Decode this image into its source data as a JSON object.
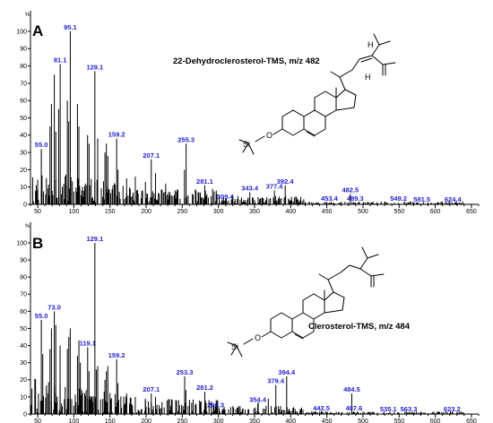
{
  "chart_data": [
    {
      "type": "bar",
      "panel": "A",
      "title": "22-Dehydroclerosterol-TMS, m/z 482",
      "ylabel": "%",
      "xlim": [
        40,
        660
      ],
      "ylim": [
        0,
        100
      ],
      "xticks": [
        50,
        100,
        150,
        200,
        250,
        300,
        350,
        400,
        450,
        500,
        550,
        600,
        650
      ],
      "yticks": [
        0,
        10,
        20,
        30,
        40,
        50,
        60,
        70,
        80,
        90,
        100
      ],
      "annotated_peaks": [
        {
          "label": "55.0",
          "x": 55.0,
          "y": 32
        },
        {
          "label": "81.1",
          "x": 81.1,
          "y": 81
        },
        {
          "label": "95.1",
          "x": 95.1,
          "y": 100
        },
        {
          "label": "129.1",
          "x": 129.1,
          "y": 77
        },
        {
          "label": "159.2",
          "x": 159.2,
          "y": 38
        },
        {
          "label": "207.1",
          "x": 207.1,
          "y": 26
        },
        {
          "label": "255.3",
          "x": 255.3,
          "y": 35
        },
        {
          "label": "281.1",
          "x": 281.1,
          "y": 11
        },
        {
          "label": "309.4",
          "x": 309.4,
          "y": 2
        },
        {
          "label": "343.4",
          "x": 343.4,
          "y": 7
        },
        {
          "label": "377.4",
          "x": 377.4,
          "y": 8
        },
        {
          "label": "392.4",
          "x": 392.4,
          "y": 11
        },
        {
          "label": "453.4",
          "x": 453.4,
          "y": 1
        },
        {
          "label": "482.5",
          "x": 482.5,
          "y": 6
        },
        {
          "label": "489.3",
          "x": 489.3,
          "y": 1
        },
        {
          "label": "549.2",
          "x": 549.2,
          "y": 1
        },
        {
          "label": "581.5",
          "x": 581.5,
          "y": 0.5
        },
        {
          "label": "624.4",
          "x": 624.4,
          "y": 0.5
        }
      ]
    },
    {
      "type": "bar",
      "panel": "B",
      "title": "Clerosterol-TMS, m/z 484",
      "ylabel": "%",
      "xlim": [
        40,
        660
      ],
      "ylim": [
        0,
        100
      ],
      "xticks": [
        50,
        100,
        150,
        200,
        250,
        300,
        350,
        400,
        450,
        500,
        550,
        600,
        650
      ],
      "yticks": [
        0,
        10,
        20,
        30,
        40,
        50,
        60,
        70,
        80,
        90,
        100
      ],
      "annotated_peaks": [
        {
          "label": "55.0",
          "x": 55.0,
          "y": 55
        },
        {
          "label": "73.0",
          "x": 73.0,
          "y": 60
        },
        {
          "label": "119.1",
          "x": 119.1,
          "y": 39
        },
        {
          "label": "129.1",
          "x": 129.1,
          "y": 100
        },
        {
          "label": "159.2",
          "x": 159.2,
          "y": 32
        },
        {
          "label": "207.1",
          "x": 207.1,
          "y": 12
        },
        {
          "label": "253.3",
          "x": 253.3,
          "y": 22
        },
        {
          "label": "281.2",
          "x": 281.2,
          "y": 13
        },
        {
          "label": "296.3",
          "x": 296.3,
          "y": 3
        },
        {
          "label": "354.4",
          "x": 354.4,
          "y": 6
        },
        {
          "label": "379.4",
          "x": 379.4,
          "y": 17
        },
        {
          "label": "394.4",
          "x": 394.4,
          "y": 22
        },
        {
          "label": "442.5",
          "x": 442.5,
          "y": 1
        },
        {
          "label": "484.5",
          "x": 484.5,
          "y": 12
        },
        {
          "label": "487.6",
          "x": 487.6,
          "y": 1
        },
        {
          "label": "535.1",
          "x": 535.1,
          "y": 0.5
        },
        {
          "label": "563.3",
          "x": 563.3,
          "y": 0.5
        },
        {
          "label": "623.2",
          "x": 623.2,
          "y": 0.5
        }
      ]
    }
  ],
  "molecule_atoms": {
    "A": [
      "H",
      "H",
      "O",
      "Si"
    ],
    "B": [
      "O",
      "Si"
    ]
  },
  "colors": {
    "peak_label": "#1f1fd1",
    "peaks": "#000000"
  }
}
